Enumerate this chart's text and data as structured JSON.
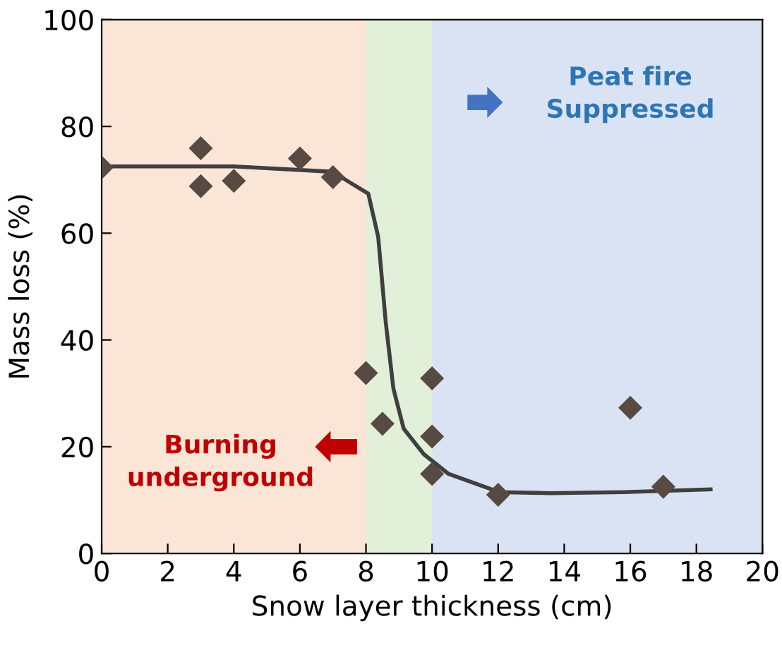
{
  "chart_data": {
    "type": "scatter",
    "xlabel": "Snow layer thickness (cm)",
    "ylabel": "Mass loss (%)",
    "xlim": [
      0,
      20
    ],
    "xticks": [
      0,
      2,
      4,
      6,
      8,
      10,
      12,
      14,
      16,
      18,
      20
    ],
    "ylim": [
      0,
      100
    ],
    "yticks": [
      0,
      20,
      40,
      60,
      80,
      100
    ],
    "grid": false,
    "legend": false,
    "marker": "diamond",
    "series": [
      {
        "color": "#574a42",
        "x": [
          0,
          3,
          3,
          4,
          6,
          7,
          8,
          8.5,
          10,
          10,
          10,
          12,
          16,
          17
        ],
        "values": [
          72.3,
          75.9,
          68.8,
          69.8,
          74,
          70.5,
          33.8,
          24.3,
          32.8,
          21.9,
          14.9,
          11,
          27.3,
          12.5
        ]
      },
      {
        "type": "line",
        "color": "#3f3f3f",
        "line_style": "solid",
        "marker": "none",
        "x": [
          0,
          4,
          7,
          7.46,
          8.07,
          8.37,
          8.6,
          8.83,
          9.14,
          9.75,
          10.5,
          12.03,
          13.56,
          15.8,
          18.43
        ],
        "values": [
          72.5,
          72.5,
          71.5,
          69.7,
          67.4,
          59.3,
          43.2,
          30.9,
          23.4,
          18.6,
          14.9,
          11.5,
          11.3,
          11.5,
          12
        ]
      }
    ],
    "bands": [
      {
        "axis": "x",
        "from": 0,
        "to": 8,
        "color": "#fbe5d6"
      },
      {
        "axis": "x",
        "from": 8,
        "to": 10,
        "color": "#e2efd9"
      },
      {
        "axis": "x",
        "from": 10,
        "to": 20,
        "color": "#dae3f3"
      }
    ],
    "annotations": [
      "Peat fire\nSuppressed",
      "Burning\nunderground"
    ]
  }
}
